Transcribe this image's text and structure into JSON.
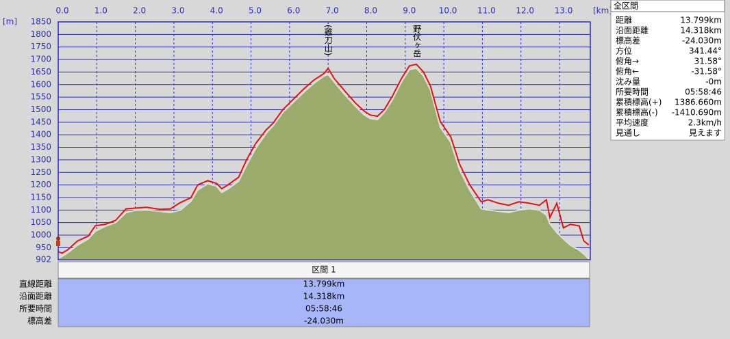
{
  "chart_data": {
    "type": "area-line",
    "y_unit": "[m]",
    "x_unit": "[km]",
    "xlim": [
      0,
      13.799
    ],
    "ylim": [
      902,
      1850
    ],
    "xticks": [
      {
        "value": 0,
        "label": "0.0"
      },
      {
        "value": 1,
        "label": "1.0"
      },
      {
        "value": 2,
        "label": "2.0"
      },
      {
        "value": 3,
        "label": "3.0"
      },
      {
        "value": 4,
        "label": "4.0"
      },
      {
        "value": 5,
        "label": "5.0"
      },
      {
        "value": 6,
        "label": "6.0"
      },
      {
        "value": 7,
        "label": "7.0"
      },
      {
        "value": 8,
        "label": "8.0"
      },
      {
        "value": 9,
        "label": "9.0"
      },
      {
        "value": 10,
        "label": "10.0"
      },
      {
        "value": 11,
        "label": "11.0"
      },
      {
        "value": 12,
        "label": "12.0"
      },
      {
        "value": 13,
        "label": "13.0"
      }
    ],
    "yticks": [
      902,
      950,
      1000,
      1050,
      1100,
      1150,
      1200,
      1250,
      1300,
      1350,
      1400,
      1450,
      1500,
      1550,
      1600,
      1650,
      1700,
      1750,
      1800,
      1850
    ],
    "grid": true,
    "x": [
      0,
      0.1,
      0.25,
      0.5,
      0.78,
      0.96,
      1.22,
      1.49,
      1.76,
      2.02,
      2.29,
      2.64,
      2.91,
      3.17,
      3.44,
      3.62,
      3.88,
      4.11,
      4.24,
      4.41,
      4.68,
      4.89,
      5.12,
      5.39,
      5.57,
      5.83,
      6.1,
      6.37,
      6.63,
      6.9,
      7.0,
      7.16,
      7.43,
      7.7,
      7.93,
      8.09,
      8.28,
      8.46,
      8.67,
      8.9,
      9.11,
      9.29,
      9.47,
      9.65,
      9.91,
      10.18,
      10.41,
      10.67,
      10.97,
      11.15,
      11.42,
      11.68,
      11.95,
      12.22,
      12.48,
      12.66,
      12.75,
      12.93,
      13.1,
      13.28,
      13.51,
      13.63,
      13.76
    ],
    "series": [
      {
        "kind": "area",
        "color": "#9aab6b",
        "values": [
          907,
          915,
          930,
          960,
          985,
          1015,
          1035,
          1050,
          1090,
          1100,
          1100,
          1095,
          1090,
          1100,
          1135,
          1180,
          1205,
          1195,
          1170,
          1185,
          1215,
          1280,
          1345,
          1405,
          1435,
          1490,
          1530,
          1570,
          1605,
          1635,
          1640,
          1610,
          1560,
          1515,
          1480,
          1465,
          1460,
          1490,
          1540,
          1610,
          1660,
          1665,
          1635,
          1580,
          1430,
          1370,
          1260,
          1180,
          1105,
          1100,
          1095,
          1090,
          1100,
          1105,
          1100,
          1080,
          1045,
          1010,
          985,
          960,
          940,
          925,
          905
        ]
      },
      {
        "kind": "line",
        "color": "#e81010",
        "values": [
          934,
          928,
          942,
          977,
          996,
          1037,
          1043,
          1059,
          1105,
          1108,
          1111,
          1103,
          1105,
          1130,
          1149,
          1201,
          1217,
          1206,
          1185,
          1201,
          1231,
          1302,
          1365,
          1419,
          1446,
          1501,
          1542,
          1583,
          1618,
          1645,
          1665,
          1624,
          1575,
          1528,
          1495,
          1479,
          1474,
          1501,
          1555,
          1624,
          1675,
          1681,
          1651,
          1596,
          1452,
          1392,
          1283,
          1201,
          1133,
          1141,
          1127,
          1119,
          1133,
          1127,
          1119,
          1141,
          1070,
          1127,
          1029,
          1043,
          1037,
          977,
          961
        ]
      }
    ],
    "annotations": [
      {
        "text": "(雞刀山)",
        "x": 7.0
      },
      {
        "text": "野伏ヶ岳",
        "x": 9.3
      }
    ]
  },
  "summary": {
    "title": "全区間",
    "rows": [
      [
        "距離",
        "13.799km"
      ],
      [
        "沿面距離",
        "14.318km"
      ],
      [
        "標高差",
        "-24.030m"
      ],
      [
        "方位",
        "341.44°"
      ],
      [
        "俯角→",
        "31.58°"
      ],
      [
        "俯角←",
        "-31.58°"
      ],
      [
        "沈み量",
        "-0m"
      ],
      [
        "所要時間",
        "05:58:46"
      ],
      [
        "累積標高(+)",
        "1386.660m"
      ],
      [
        "累積標高(-)",
        "-1410.690m"
      ],
      [
        "平均速度",
        "2.3km/h"
      ],
      [
        "見通し",
        "見えます"
      ]
    ]
  },
  "segment": {
    "header": "区間 1",
    "rows": [
      [
        "直線距離",
        "13.799km"
      ],
      [
        "沿面距離",
        "14.318km"
      ],
      [
        "所要時間",
        "05:58:46"
      ],
      [
        "標高差",
        "-24.030m"
      ]
    ]
  }
}
